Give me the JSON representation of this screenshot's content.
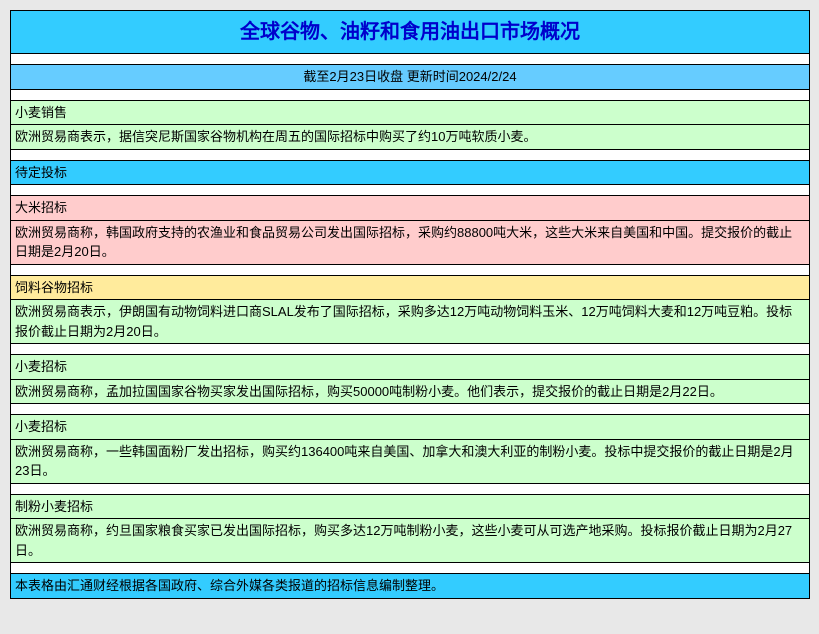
{
  "title": "全球谷物、油籽和食用油出口市场概况",
  "subtitle": "截至2月23日收盘        更新时间2024/2/24",
  "sections": [
    {
      "header": "小麦销售",
      "header_bg": "#ccffcc",
      "content": "欧洲贸易商表示，据信突尼斯国家谷物机构在周五的国际招标中购买了约10万吨软质小麦。",
      "content_bg": "#ccffcc"
    },
    {
      "header": "待定投标",
      "header_bg": "#33ccff",
      "content": null,
      "content_bg": null
    },
    {
      "header": "大米招标",
      "header_bg": "#ffcccc",
      "content": "欧洲贸易商称，韩国政府支持的农渔业和食品贸易公司发出国际招标，采购约88800吨大米，这些大米来自美国和中国。提交报价的截止日期是2月20日。",
      "content_bg": "#ffcccc"
    },
    {
      "header": "饲料谷物招标",
      "header_bg": "#ffeb9c",
      "content": "欧洲贸易商表示，伊朗国有动物饲料进口商SLAL发布了国际招标，采购多达12万吨动物饲料玉米、12万吨饲料大麦和12万吨豆粕。投标报价截止日期为2月20日。",
      "content_bg": "#ccffcc"
    },
    {
      "header": "小麦招标",
      "header_bg": "#ccffcc",
      "content": "欧洲贸易商称，孟加拉国国家谷物买家发出国际招标，购买50000吨制粉小麦。他们表示，提交报价的截止日期是2月22日。",
      "content_bg": "#ccffcc"
    },
    {
      "header": "小麦招标",
      "header_bg": "#ccffcc",
      "content": "欧洲贸易商称，一些韩国面粉厂发出招标，购买约136400吨来自美国、加拿大和澳大利亚的制粉小麦。投标中提交报价的截止日期是2月23日。",
      "content_bg": "#ccffcc"
    },
    {
      "header": "制粉小麦招标",
      "header_bg": "#ccffcc",
      "content": "欧洲贸易商称，约旦国家粮食买家已发出国际招标，购买多达12万吨制粉小麦，这些小麦可从可选产地采购。投标报价截止日期为2月27日。",
      "content_bg": "#ccffcc"
    }
  ],
  "footer": "本表格由汇通财经根据各国政府、综合外媒各类报道的招标信息编制整理。",
  "colors": {
    "title_bg": "#33ccff",
    "title_color": "#0000cc",
    "subtitle_bg": "#66ccff",
    "border": "#000000",
    "footer_bg": "#33ccff"
  }
}
